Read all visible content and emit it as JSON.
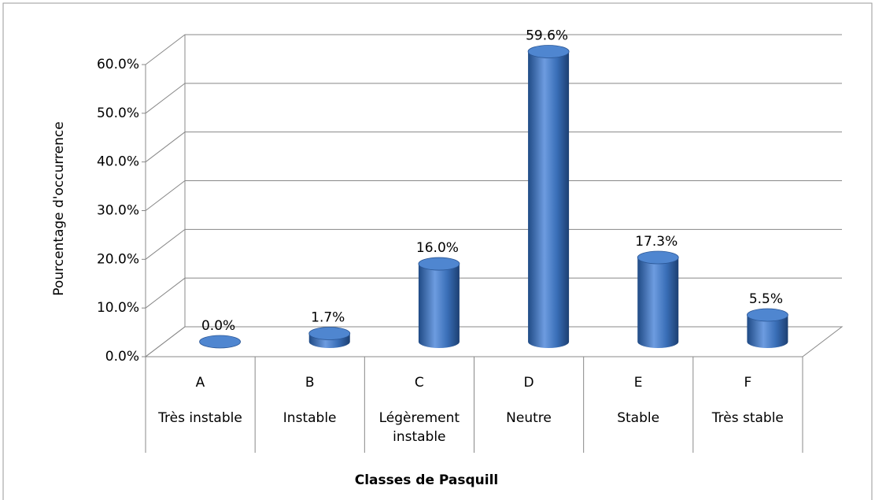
{
  "chart_data": {
    "type": "bar3d_cylinder",
    "x_label": "Classes de Pasquill",
    "y_label": "Pourcentage d'occurrence",
    "categories": [
      "A",
      "B",
      "C",
      "D",
      "E",
      "F"
    ],
    "subcategories": [
      "Très instable",
      "Instable",
      "Légèrement instable",
      "Neutre",
      "Stable",
      "Très stable"
    ],
    "values": [
      0.0,
      1.7,
      16.0,
      59.6,
      17.3,
      5.5
    ],
    "value_labels": [
      "0.0%",
      "1.7%",
      "16.0%",
      "59.6%",
      "17.3%",
      "5.5%"
    ],
    "color": "#3a6fb8",
    "ylim": [
      0,
      60
    ],
    "yticks": [
      {
        "value": 0,
        "label": "0.0%"
      },
      {
        "value": 10,
        "label": "10.0%"
      },
      {
        "value": 20,
        "label": "20.0%"
      },
      {
        "value": 30,
        "label": "30.0%"
      },
      {
        "value": 40,
        "label": "40.0%"
      },
      {
        "value": 50,
        "label": "50.0%"
      },
      {
        "value": 60,
        "label": "60.0%"
      }
    ],
    "grid": true
  }
}
